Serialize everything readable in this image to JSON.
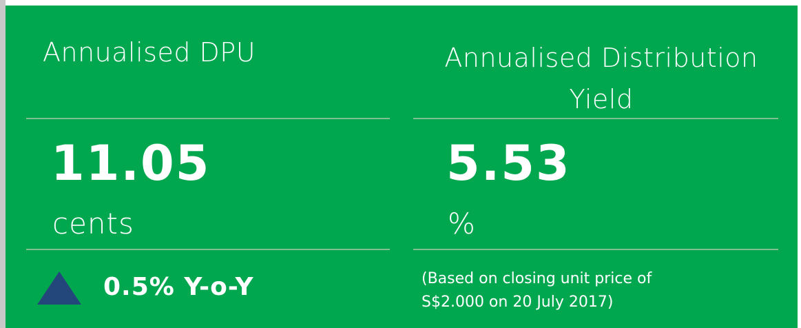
{
  "panels": [
    {
      "title": "Annualised DPU",
      "value": "11.05",
      "unit": "cents",
      "change": "0.5% Y-o-Y"
    },
    {
      "title": "Annualised Distribution Yield",
      "value": "5.53",
      "unit": "%",
      "note": "(Based on closing unit price of S$2.000 on 20 July 2017)"
    }
  ]
}
